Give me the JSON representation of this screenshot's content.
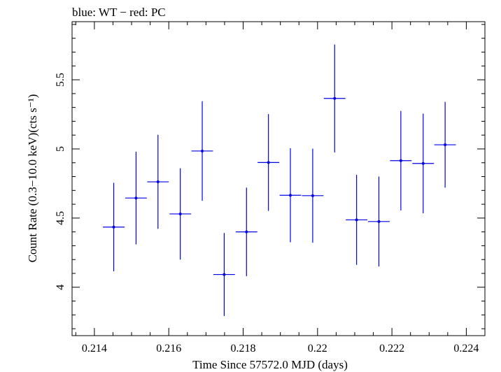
{
  "chart_data": {
    "type": "scatter",
    "title": "blue: WT − red: PC",
    "xlabel": "Time Since 57572.0 MJD (days)",
    "ylabel": "Count Rate (0.3−10.0 keV)(cts s⁻¹)",
    "xlim": [
      0.2134,
      0.2245
    ],
    "ylim": [
      3.65,
      5.92
    ],
    "xticks": [
      0.214,
      0.216,
      0.218,
      0.22,
      0.222,
      0.224
    ],
    "xtick_labels": [
      "0.214",
      "0.216",
      "0.218",
      "0.22",
      "0.222",
      "0.224"
    ],
    "yticks": [
      4,
      4.5,
      5,
      5.5
    ],
    "ytick_labels": [
      "4",
      "4.5",
      "5",
      "5.5"
    ],
    "grid": false,
    "series": [
      {
        "color": "#0000ee",
        "points": [
          {
            "x": 0.21452,
            "xerr": 0.00029,
            "y": 4.435,
            "yerr": 0.32
          },
          {
            "x": 0.21512,
            "xerr": 0.00029,
            "y": 4.645,
            "yerr": 0.335
          },
          {
            "x": 0.21571,
            "xerr": 0.00029,
            "y": 4.762,
            "yerr": 0.34
          },
          {
            "x": 0.21631,
            "xerr": 0.00029,
            "y": 4.53,
            "yerr": 0.33
          },
          {
            "x": 0.2169,
            "xerr": 0.00029,
            "y": 4.985,
            "yerr": 0.36
          },
          {
            "x": 0.21749,
            "xerr": 0.00029,
            "y": 4.092,
            "yerr": 0.3
          },
          {
            "x": 0.21809,
            "xerr": 0.00029,
            "y": 4.4,
            "yerr": 0.32
          },
          {
            "x": 0.21868,
            "xerr": 0.00029,
            "y": 4.902,
            "yerr": 0.35
          },
          {
            "x": 0.21927,
            "xerr": 0.00029,
            "y": 4.665,
            "yerr": 0.34
          },
          {
            "x": 0.21987,
            "xerr": 0.00029,
            "y": 4.662,
            "yerr": 0.34
          },
          {
            "x": 0.22046,
            "xerr": 0.00029,
            "y": 5.365,
            "yerr": 0.39
          },
          {
            "x": 0.22105,
            "xerr": 0.00029,
            "y": 4.487,
            "yerr": 0.325
          },
          {
            "x": 0.22165,
            "xerr": 0.00029,
            "y": 4.475,
            "yerr": 0.325
          },
          {
            "x": 0.22224,
            "xerr": 0.00029,
            "y": 4.915,
            "yerr": 0.36
          },
          {
            "x": 0.22284,
            "xerr": 0.00029,
            "y": 4.895,
            "yerr": 0.36
          },
          {
            "x": 0.22343,
            "xerr": 0.00029,
            "y": 5.03,
            "yerr": 0.31
          }
        ]
      }
    ]
  }
}
